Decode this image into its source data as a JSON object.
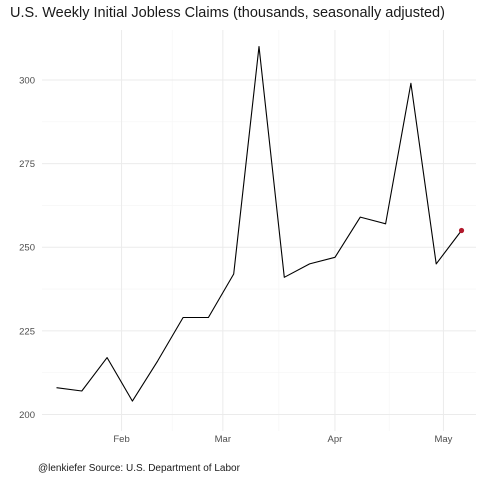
{
  "title": "U.S. Weekly Initial Jobless Claims (thousands, seasonally adjusted)",
  "caption": "@lenkiefer Source: U.S. Department of Labor",
  "colors": {
    "line": "#000000",
    "highlight_point": "#b2182b",
    "grid_major": "#ebebeb",
    "grid_minor": "#f5f5f5",
    "tick_text": "#4d4d4d"
  },
  "chart_data": {
    "type": "line",
    "title": "U.S. Weekly Initial Jobless Claims (thousands, seasonally adjusted)",
    "xlabel": "",
    "ylabel": "",
    "x": [
      "2017-01-14",
      "2017-01-21",
      "2017-01-28",
      "2017-02-04",
      "2017-02-11",
      "2017-02-18",
      "2017-02-25",
      "2017-03-04",
      "2017-03-11",
      "2017-03-18",
      "2017-03-25",
      "2017-04-01",
      "2017-04-08",
      "2017-04-15",
      "2017-04-22",
      "2017-04-29",
      "2017-05-06"
    ],
    "series": [
      {
        "values": [
          208,
          207,
          217,
          204,
          216,
          229,
          229,
          242,
          310,
          241,
          245,
          247,
          259,
          257,
          299,
          245,
          255
        ]
      }
    ],
    "highlight_last_point": true,
    "x_ticks": [
      "Feb",
      "Mar",
      "Apr",
      "May"
    ],
    "x_tick_dates": [
      "2017-02-01",
      "2017-03-01",
      "2017-04-01",
      "2017-05-01"
    ],
    "y_ticks": [
      200,
      225,
      250,
      275,
      300
    ],
    "ylim": [
      200,
      310
    ],
    "xlim": [
      "2017-01-10",
      "2017-05-10"
    ],
    "grid": true,
    "legend": "none"
  }
}
